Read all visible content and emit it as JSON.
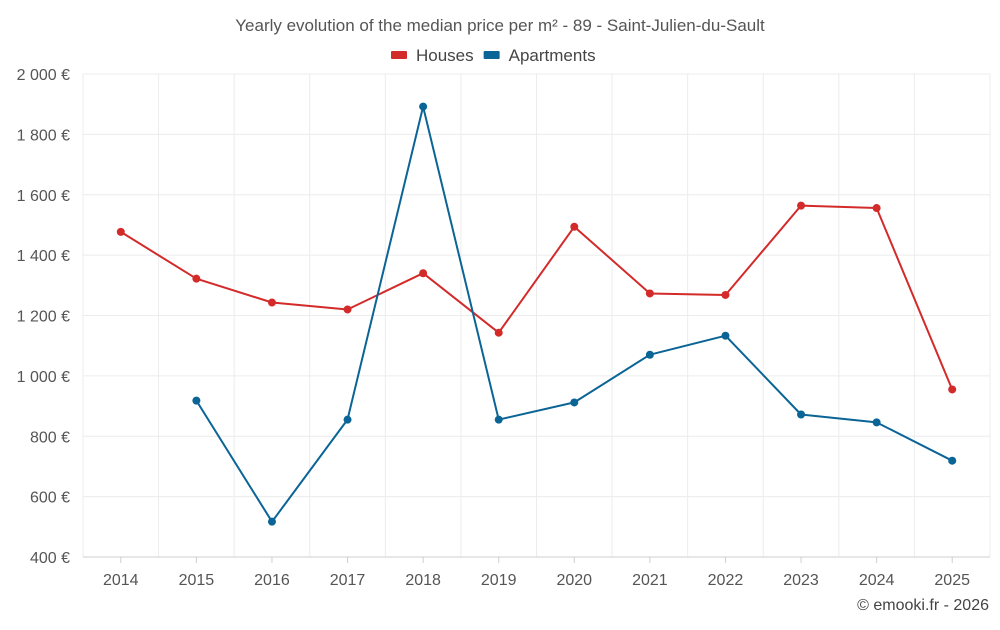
{
  "chart_data": {
    "type": "line",
    "title": "Yearly evolution of the median price per m² - 89 - Saint-Julien-du-Sault",
    "xlabel": "",
    "ylabel": "",
    "categories": [
      "2014",
      "2015",
      "2016",
      "2017",
      "2018",
      "2019",
      "2020",
      "2021",
      "2022",
      "2023",
      "2024",
      "2025"
    ],
    "ylim": [
      400,
      2000
    ],
    "yticks": [
      400,
      600,
      800,
      1000,
      1200,
      1400,
      1600,
      1800,
      2000
    ],
    "ytick_labels": [
      "400 €",
      "600 €",
      "800 €",
      "1 000 €",
      "1 200 €",
      "1 400 €",
      "1 600 €",
      "1 800 €",
      "2 000 €"
    ],
    "grid": true,
    "legend_position": "top-center",
    "series": [
      {
        "name": "Houses",
        "color": "#d32a2a",
        "values": [
          1477,
          1322,
          1243,
          1220,
          1340,
          1143,
          1494,
          1273,
          1268,
          1564,
          1556,
          955
        ]
      },
      {
        "name": "Apartments",
        "color": "#0a6496",
        "values": [
          null,
          918,
          517,
          855,
          1892,
          855,
          912,
          1070,
          1133,
          872,
          846,
          719
        ]
      }
    ]
  },
  "credit": "© emooki.fr - 2026"
}
